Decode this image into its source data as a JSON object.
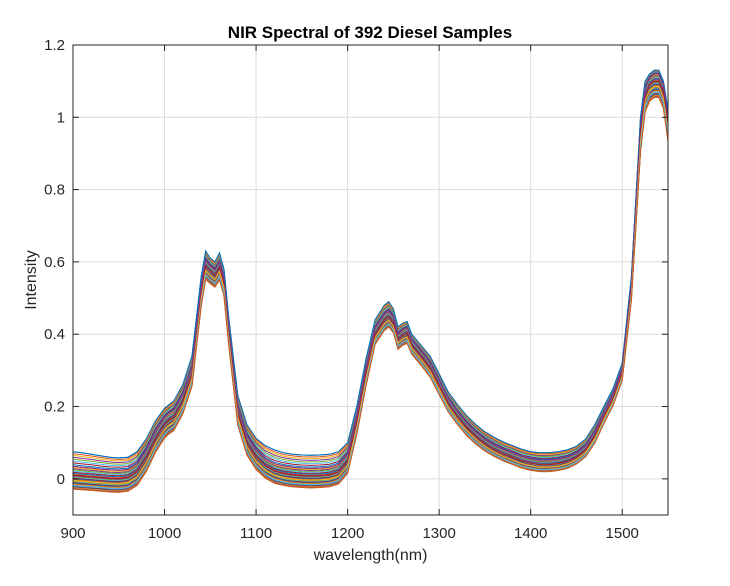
{
  "chart_data": {
    "type": "line",
    "title": "NIR Spectral of 392 Diesel Samples",
    "xlabel": "wavelength(nm)",
    "ylabel": "Intensity",
    "xlim": [
      900,
      1550
    ],
    "ylim": [
      -0.1,
      1.2
    ],
    "xticks": [
      900,
      1000,
      1100,
      1200,
      1300,
      1400,
      1500
    ],
    "yticks": [
      0,
      0.2,
      0.4,
      0.6,
      0.8,
      1,
      1.2
    ],
    "ytick_labels": [
      "0",
      "0.2",
      "0.4",
      "0.6",
      "0.8",
      "1",
      "1.2"
    ],
    "grid": true,
    "legend": "none",
    "sample_count": 392,
    "x": [
      900,
      910,
      920,
      930,
      940,
      950,
      960,
      970,
      980,
      990,
      1000,
      1005,
      1010,
      1020,
      1030,
      1040,
      1045,
      1050,
      1055,
      1060,
      1065,
      1070,
      1080,
      1090,
      1100,
      1110,
      1120,
      1130,
      1140,
      1150,
      1160,
      1170,
      1180,
      1190,
      1200,
      1210,
      1220,
      1230,
      1240,
      1245,
      1250,
      1255,
      1260,
      1265,
      1270,
      1280,
      1290,
      1300,
      1310,
      1320,
      1330,
      1340,
      1350,
      1360,
      1370,
      1380,
      1390,
      1400,
      1410,
      1420,
      1430,
      1440,
      1450,
      1460,
      1470,
      1480,
      1490,
      1500,
      1510,
      1520,
      1525,
      1530,
      1535,
      1540,
      1545,
      1550
    ],
    "series": [
      {
        "values": [
          0.075,
          0.072,
          0.068,
          0.064,
          0.06,
          0.058,
          0.06,
          0.075,
          0.11,
          0.16,
          0.195,
          0.205,
          0.215,
          0.26,
          0.34,
          0.56,
          0.63,
          0.61,
          0.6,
          0.625,
          0.58,
          0.45,
          0.23,
          0.15,
          0.112,
          0.092,
          0.08,
          0.072,
          0.068,
          0.066,
          0.065,
          0.066,
          0.068,
          0.075,
          0.1,
          0.2,
          0.33,
          0.44,
          0.48,
          0.49,
          0.47,
          0.42,
          0.43,
          0.435,
          0.4,
          0.37,
          0.34,
          0.29,
          0.24,
          0.205,
          0.175,
          0.15,
          0.13,
          0.115,
          0.102,
          0.092,
          0.082,
          0.075,
          0.072,
          0.072,
          0.075,
          0.08,
          0.09,
          0.11,
          0.15,
          0.2,
          0.25,
          0.32,
          0.56,
          1.0,
          1.1,
          1.12,
          1.13,
          1.13,
          1.1,
          1.02
        ]
      },
      {
        "values": [
          0.035,
          0.032,
          0.03,
          0.027,
          0.025,
          0.024,
          0.026,
          0.042,
          0.08,
          0.132,
          0.17,
          0.182,
          0.19,
          0.235,
          0.31,
          0.53,
          0.605,
          0.59,
          0.578,
          0.6,
          0.555,
          0.42,
          0.2,
          0.12,
          0.08,
          0.055,
          0.042,
          0.036,
          0.032,
          0.03,
          0.029,
          0.03,
          0.032,
          0.04,
          0.068,
          0.175,
          0.305,
          0.418,
          0.455,
          0.465,
          0.448,
          0.4,
          0.412,
          0.418,
          0.385,
          0.355,
          0.322,
          0.272,
          0.222,
          0.186,
          0.155,
          0.13,
          0.11,
          0.094,
          0.082,
          0.072,
          0.062,
          0.056,
          0.052,
          0.052,
          0.055,
          0.06,
          0.072,
          0.092,
          0.13,
          0.185,
          0.235,
          0.305,
          0.54,
          0.97,
          1.08,
          1.11,
          1.12,
          1.12,
          1.09,
          1.0
        ]
      },
      {
        "values": [
          0.01,
          0.008,
          0.006,
          0.004,
          0.002,
          0.001,
          0.004,
          0.02,
          0.058,
          0.11,
          0.15,
          0.162,
          0.17,
          0.215,
          0.29,
          0.512,
          0.588,
          0.574,
          0.562,
          0.585,
          0.54,
          0.405,
          0.182,
          0.1,
          0.06,
          0.036,
          0.022,
          0.015,
          0.011,
          0.009,
          0.008,
          0.009,
          0.011,
          0.019,
          0.048,
          0.155,
          0.287,
          0.4,
          0.438,
          0.448,
          0.431,
          0.384,
          0.396,
          0.402,
          0.37,
          0.34,
          0.307,
          0.257,
          0.208,
          0.172,
          0.142,
          0.117,
          0.097,
          0.081,
          0.069,
          0.059,
          0.049,
          0.043,
          0.039,
          0.039,
          0.042,
          0.048,
          0.06,
          0.08,
          0.118,
          0.172,
          0.222,
          0.292,
          0.525,
          0.95,
          1.06,
          1.09,
          1.1,
          1.1,
          1.07,
          0.98
        ]
      },
      {
        "values": [
          -0.005,
          -0.007,
          -0.009,
          -0.011,
          -0.013,
          -0.014,
          -0.011,
          0.005,
          0.043,
          0.096,
          0.136,
          0.148,
          0.156,
          0.202,
          0.278,
          0.5,
          0.576,
          0.562,
          0.551,
          0.573,
          0.528,
          0.394,
          0.17,
          0.088,
          0.048,
          0.024,
          0.01,
          0.003,
          -0.001,
          -0.003,
          -0.004,
          -0.003,
          -0.001,
          0.007,
          0.036,
          0.143,
          0.276,
          0.39,
          0.428,
          0.438,
          0.421,
          0.375,
          0.386,
          0.392,
          0.361,
          0.331,
          0.298,
          0.248,
          0.199,
          0.164,
          0.134,
          0.11,
          0.09,
          0.074,
          0.062,
          0.052,
          0.042,
          0.036,
          0.032,
          0.032,
          0.035,
          0.041,
          0.053,
          0.073,
          0.111,
          0.165,
          0.215,
          0.285,
          0.515,
          0.935,
          1.045,
          1.075,
          1.085,
          1.085,
          1.055,
          0.965
        ]
      },
      {
        "values": [
          -0.018,
          -0.02,
          -0.022,
          -0.024,
          -0.026,
          -0.027,
          -0.024,
          -0.008,
          0.03,
          0.083,
          0.123,
          0.135,
          0.143,
          0.19,
          0.266,
          0.488,
          0.563,
          0.55,
          0.54,
          0.56,
          0.516,
          0.383,
          0.158,
          0.076,
          0.036,
          0.012,
          -0.002,
          -0.009,
          -0.013,
          -0.015,
          -0.016,
          -0.015,
          -0.013,
          -0.005,
          0.024,
          0.132,
          0.265,
          0.38,
          0.418,
          0.428,
          0.412,
          0.366,
          0.377,
          0.383,
          0.352,
          0.322,
          0.289,
          0.24,
          0.191,
          0.156,
          0.126,
          0.102,
          0.083,
          0.067,
          0.055,
          0.045,
          0.035,
          0.029,
          0.025,
          0.025,
          0.028,
          0.034,
          0.046,
          0.066,
          0.104,
          0.158,
          0.208,
          0.278,
          0.505,
          0.92,
          1.03,
          1.06,
          1.07,
          1.07,
          1.04,
          0.95
        ]
      },
      {
        "values": [
          -0.028,
          -0.03,
          -0.032,
          -0.034,
          -0.036,
          -0.037,
          -0.034,
          -0.018,
          0.02,
          0.073,
          0.113,
          0.125,
          0.133,
          0.18,
          0.256,
          0.478,
          0.552,
          0.54,
          0.53,
          0.55,
          0.506,
          0.374,
          0.148,
          0.066,
          0.026,
          0.002,
          -0.012,
          -0.018,
          -0.022,
          -0.024,
          -0.025,
          -0.024,
          -0.022,
          -0.014,
          0.015,
          0.123,
          0.256,
          0.372,
          0.41,
          0.42,
          0.404,
          0.358,
          0.369,
          0.375,
          0.345,
          0.315,
          0.282,
          0.233,
          0.185,
          0.15,
          0.12,
          0.096,
          0.077,
          0.062,
          0.05,
          0.04,
          0.03,
          0.024,
          0.02,
          0.02,
          0.023,
          0.029,
          0.041,
          0.061,
          0.099,
          0.153,
          0.203,
          0.272,
          0.495,
          0.905,
          1.015,
          1.045,
          1.055,
          1.055,
          1.025,
          0.935
        ]
      }
    ]
  }
}
